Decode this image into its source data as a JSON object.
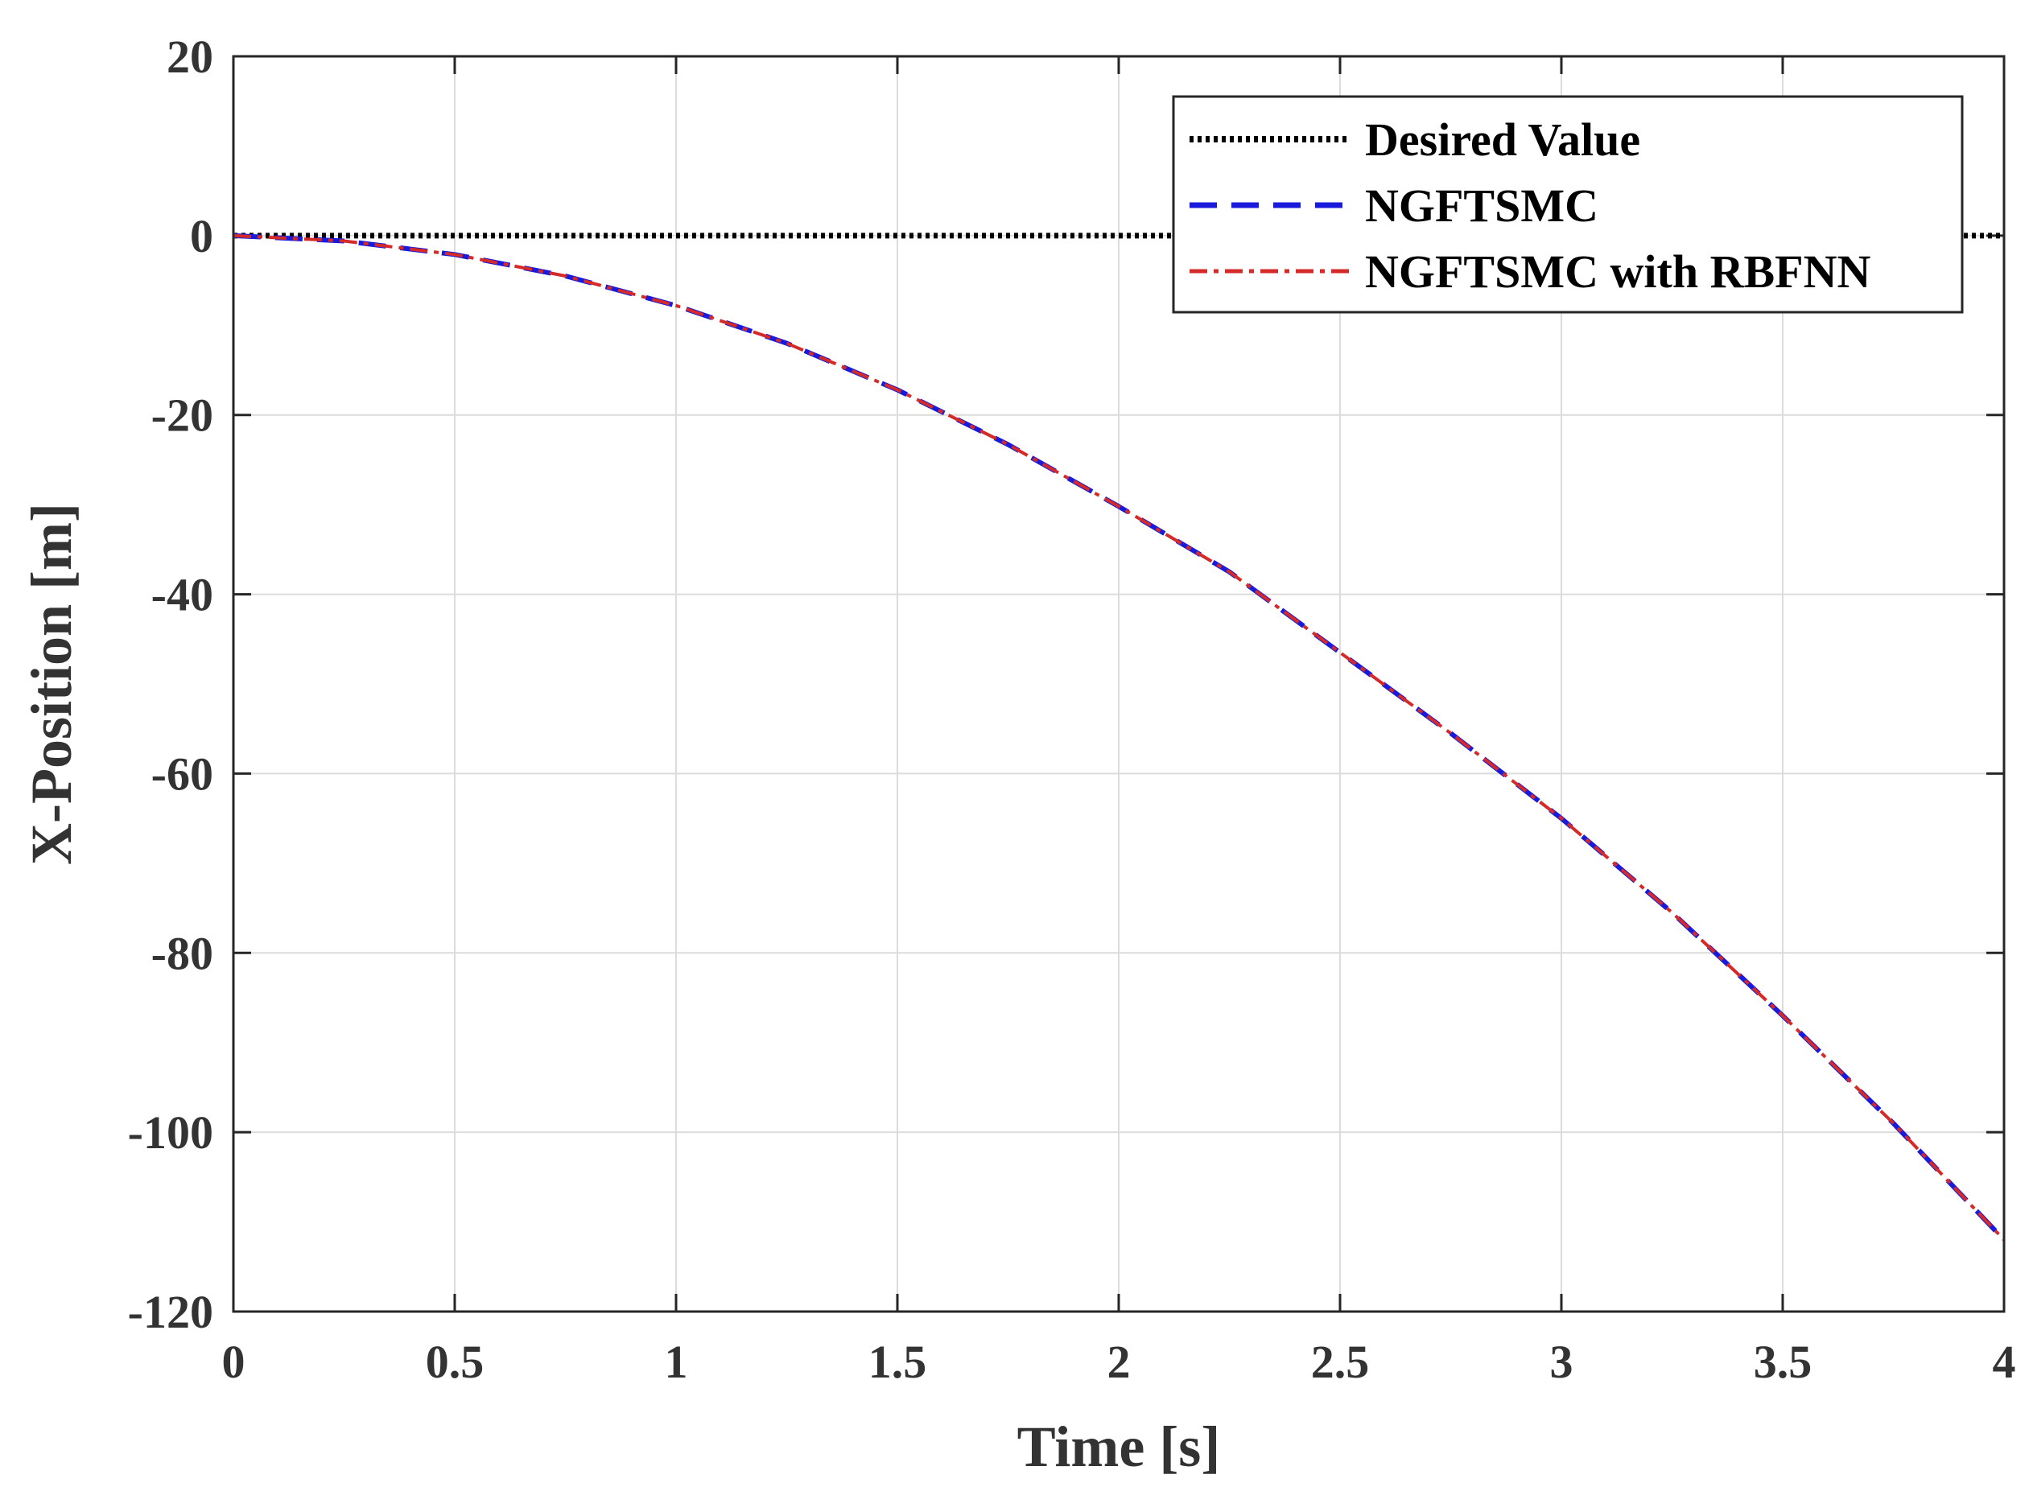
{
  "chart_data": {
    "type": "line",
    "title": "",
    "xlabel": "Time [s]",
    "ylabel": "X-Position [m]",
    "xlim": [
      0,
      4
    ],
    "ylim": [
      -120,
      20
    ],
    "grid": true,
    "xticks": [
      0,
      0.5,
      1,
      1.5,
      2,
      2.5,
      3,
      3.5,
      4
    ],
    "xtick_labels": [
      "0",
      "0.5",
      "1",
      "1.5",
      "2",
      "2.5",
      "3",
      "3.5",
      "4"
    ],
    "yticks": [
      20,
      0,
      -20,
      -40,
      -60,
      -80,
      -100,
      -120
    ],
    "ytick_labels": [
      "20",
      "0",
      "-20",
      "-40",
      "-60",
      "-80",
      "-100",
      "-120"
    ],
    "legend_position": "top-right",
    "series": [
      {
        "name": "Desired Value",
        "color": "#000000",
        "style": "dotted",
        "x": [
          0,
          0.5,
          1,
          1.5,
          2,
          2.5,
          3,
          3.5,
          4
        ],
        "y": [
          0,
          0,
          0,
          0,
          0,
          0,
          0,
          0,
          0
        ]
      },
      {
        "name": "NGFTSMC",
        "color": "#1a1adb",
        "style": "dashed",
        "x": [
          0,
          0.25,
          0.5,
          0.75,
          1,
          1.25,
          1.5,
          1.75,
          2,
          2.25,
          2.5,
          2.75,
          3,
          3.25,
          3.5,
          3.75,
          4
        ],
        "y": [
          0,
          -0.6,
          -2.1,
          -4.5,
          -7.8,
          -12.0,
          -17.2,
          -23.3,
          -30.2,
          -37.5,
          -46.5,
          -55.5,
          -65.0,
          -75.5,
          -87.0,
          -99.0,
          -112.0
        ]
      },
      {
        "name": "NGFTSMC with RBFNN",
        "color": "#d42a2a",
        "style": "dash-dot",
        "x": [
          0,
          0.25,
          0.5,
          0.75,
          1,
          1.25,
          1.5,
          1.75,
          2,
          2.25,
          2.5,
          2.75,
          3,
          3.25,
          3.5,
          3.75,
          4
        ],
        "y": [
          0,
          -0.6,
          -2.1,
          -4.5,
          -7.8,
          -12.0,
          -17.2,
          -23.3,
          -30.2,
          -37.5,
          -46.5,
          -55.5,
          -65.0,
          -75.5,
          -87.0,
          -99.0,
          -112.0
        ]
      }
    ]
  }
}
